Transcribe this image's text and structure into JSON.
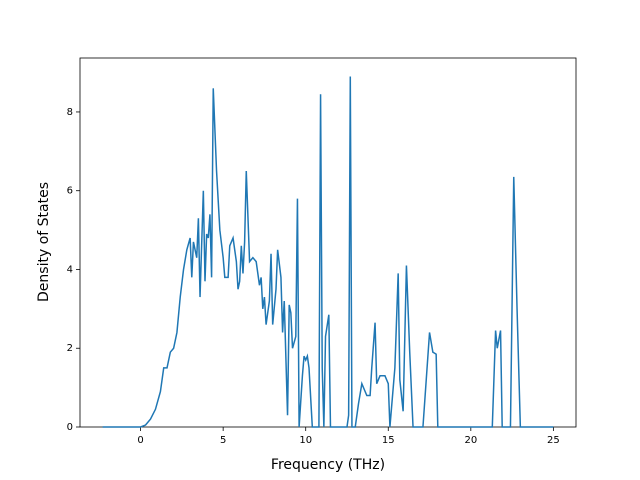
{
  "chart_data": {
    "type": "line",
    "xlabel": "Frequency (THz)",
    "ylabel": "Density of States",
    "x": [
      -2.3,
      0,
      0.3,
      0.6,
      0.9,
      1.2,
      1.4,
      1.6,
      1.8,
      2.0,
      2.2,
      2.4,
      2.6,
      2.8,
      3.0,
      3.1,
      3.2,
      3.4,
      3.5,
      3.6,
      3.8,
      3.9,
      4.0,
      4.1,
      4.2,
      4.3,
      4.4,
      4.6,
      4.8,
      5.0,
      5.1,
      5.3,
      5.4,
      5.6,
      5.8,
      5.9,
      6.0,
      6.1,
      6.2,
      6.3,
      6.4,
      6.6,
      6.8,
      7.0,
      7.2,
      7.3,
      7.4,
      7.5,
      7.6,
      7.8,
      7.9,
      8.0,
      8.2,
      8.3,
      8.5,
      8.6,
      8.7,
      8.9,
      9.0,
      9.1,
      9.2,
      9.4,
      9.5,
      9.6,
      9.8,
      9.9,
      10.0,
      10.1,
      10.2,
      10.4,
      10.8,
      10.9,
      11.0,
      11.1,
      11.2,
      11.4,
      11.5,
      12.5,
      12.6,
      12.7,
      12.8,
      13.0,
      13.2,
      13.4,
      13.5,
      13.7,
      13.9,
      14.0,
      14.2,
      14.3,
      14.5,
      14.8,
      15.0,
      15.1,
      15.2,
      15.4,
      15.6,
      15.7,
      15.9,
      16.1,
      16.3,
      16.5,
      17.1,
      17.3,
      17.5,
      17.7,
      17.9,
      18.0,
      21.3,
      21.5,
      21.6,
      21.8,
      21.9,
      22.4,
      22.6,
      22.8,
      23.0,
      25
    ],
    "series": [
      {
        "name": "DOS",
        "color": "#1f77b4",
        "values": [
          0,
          0,
          0.05,
          0.2,
          0.45,
          0.9,
          1.5,
          1.5,
          1.9,
          2.0,
          2.4,
          3.3,
          4.0,
          4.5,
          4.8,
          3.8,
          4.7,
          4.3,
          5.3,
          3.3,
          6.0,
          3.7,
          4.9,
          4.8,
          5.4,
          3.8,
          8.6,
          6.5,
          5.0,
          4.3,
          3.8,
          3.8,
          4.6,
          4.8,
          4.2,
          3.5,
          3.7,
          4.6,
          3.9,
          4.7,
          6.5,
          4.2,
          4.3,
          4.2,
          3.6,
          3.8,
          3.0,
          3.3,
          2.6,
          3.2,
          4.4,
          2.6,
          3.5,
          4.5,
          3.8,
          2.4,
          3.2,
          0.3,
          3.1,
          2.9,
          2.0,
          2.3,
          5.8,
          0,
          1.3,
          1.8,
          1.7,
          1.8,
          1.5,
          0,
          0,
          8.45,
          1.5,
          0,
          2.3,
          2.85,
          0,
          0,
          0.3,
          8.9,
          0,
          0,
          0.6,
          1.1,
          1.0,
          0.8,
          0.8,
          1.5,
          2.65,
          1.1,
          1.3,
          1.3,
          1.1,
          0,
          0.5,
          1.5,
          3.9,
          1.2,
          0.4,
          4.1,
          1.9,
          0,
          0,
          1.2,
          2.4,
          1.9,
          1.85,
          0,
          0,
          2.45,
          2.0,
          2.45,
          0,
          0,
          6.35,
          3.0,
          0,
          0
        ]
      }
    ],
    "xlim": [
      -3.67,
      26.37
    ],
    "ylim": [
      0,
      9.37
    ],
    "xticks": [
      0,
      5,
      10,
      15,
      20,
      25
    ],
    "yticks": [
      0,
      2,
      4,
      6,
      8
    ]
  }
}
